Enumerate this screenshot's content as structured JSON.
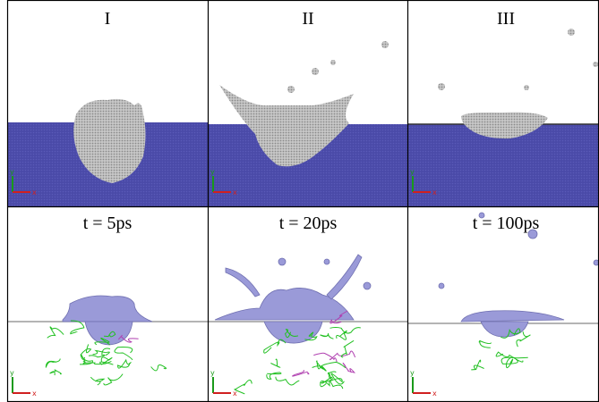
{
  "panels": {
    "top": [
      "I",
      "II",
      "III"
    ],
    "bottom": [
      "t = 5ps",
      "t = 20ps",
      "t = 100ps"
    ]
  },
  "axes": {
    "y": "y",
    "x": "x"
  }
}
